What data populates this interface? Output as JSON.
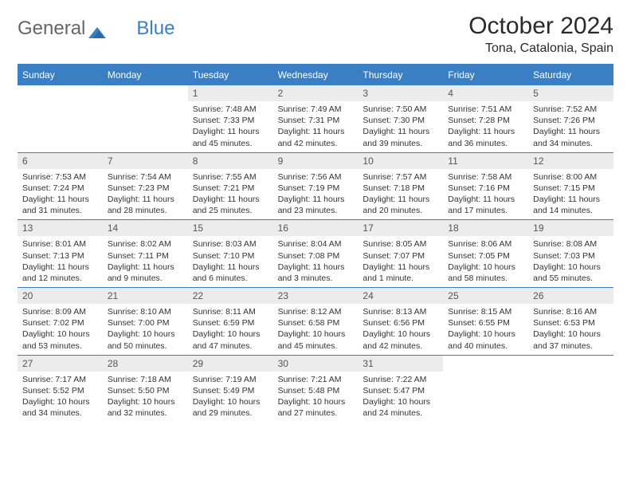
{
  "brand": {
    "part1": "General",
    "part2": "Blue"
  },
  "title": "October 2024",
  "location": "Tona, Catalonia, Spain",
  "colors": {
    "accent": "#3a7fc4",
    "dayHeaderBg": "#ececec",
    "text": "#333333",
    "logoGray": "#666666",
    "white": "#ffffff"
  },
  "calendar": {
    "daysOfWeek": [
      "Sunday",
      "Monday",
      "Tuesday",
      "Wednesday",
      "Thursday",
      "Friday",
      "Saturday"
    ],
    "leadingBlanks": 2,
    "days": [
      {
        "n": "1",
        "sunrise": "Sunrise: 7:48 AM",
        "sunset": "Sunset: 7:33 PM",
        "daylight": "Daylight: 11 hours and 45 minutes."
      },
      {
        "n": "2",
        "sunrise": "Sunrise: 7:49 AM",
        "sunset": "Sunset: 7:31 PM",
        "daylight": "Daylight: 11 hours and 42 minutes."
      },
      {
        "n": "3",
        "sunrise": "Sunrise: 7:50 AM",
        "sunset": "Sunset: 7:30 PM",
        "daylight": "Daylight: 11 hours and 39 minutes."
      },
      {
        "n": "4",
        "sunrise": "Sunrise: 7:51 AM",
        "sunset": "Sunset: 7:28 PM",
        "daylight": "Daylight: 11 hours and 36 minutes."
      },
      {
        "n": "5",
        "sunrise": "Sunrise: 7:52 AM",
        "sunset": "Sunset: 7:26 PM",
        "daylight": "Daylight: 11 hours and 34 minutes."
      },
      {
        "n": "6",
        "sunrise": "Sunrise: 7:53 AM",
        "sunset": "Sunset: 7:24 PM",
        "daylight": "Daylight: 11 hours and 31 minutes."
      },
      {
        "n": "7",
        "sunrise": "Sunrise: 7:54 AM",
        "sunset": "Sunset: 7:23 PM",
        "daylight": "Daylight: 11 hours and 28 minutes."
      },
      {
        "n": "8",
        "sunrise": "Sunrise: 7:55 AM",
        "sunset": "Sunset: 7:21 PM",
        "daylight": "Daylight: 11 hours and 25 minutes."
      },
      {
        "n": "9",
        "sunrise": "Sunrise: 7:56 AM",
        "sunset": "Sunset: 7:19 PM",
        "daylight": "Daylight: 11 hours and 23 minutes."
      },
      {
        "n": "10",
        "sunrise": "Sunrise: 7:57 AM",
        "sunset": "Sunset: 7:18 PM",
        "daylight": "Daylight: 11 hours and 20 minutes."
      },
      {
        "n": "11",
        "sunrise": "Sunrise: 7:58 AM",
        "sunset": "Sunset: 7:16 PM",
        "daylight": "Daylight: 11 hours and 17 minutes."
      },
      {
        "n": "12",
        "sunrise": "Sunrise: 8:00 AM",
        "sunset": "Sunset: 7:15 PM",
        "daylight": "Daylight: 11 hours and 14 minutes."
      },
      {
        "n": "13",
        "sunrise": "Sunrise: 8:01 AM",
        "sunset": "Sunset: 7:13 PM",
        "daylight": "Daylight: 11 hours and 12 minutes."
      },
      {
        "n": "14",
        "sunrise": "Sunrise: 8:02 AM",
        "sunset": "Sunset: 7:11 PM",
        "daylight": "Daylight: 11 hours and 9 minutes."
      },
      {
        "n": "15",
        "sunrise": "Sunrise: 8:03 AM",
        "sunset": "Sunset: 7:10 PM",
        "daylight": "Daylight: 11 hours and 6 minutes."
      },
      {
        "n": "16",
        "sunrise": "Sunrise: 8:04 AM",
        "sunset": "Sunset: 7:08 PM",
        "daylight": "Daylight: 11 hours and 3 minutes."
      },
      {
        "n": "17",
        "sunrise": "Sunrise: 8:05 AM",
        "sunset": "Sunset: 7:07 PM",
        "daylight": "Daylight: 11 hours and 1 minute."
      },
      {
        "n": "18",
        "sunrise": "Sunrise: 8:06 AM",
        "sunset": "Sunset: 7:05 PM",
        "daylight": "Daylight: 10 hours and 58 minutes."
      },
      {
        "n": "19",
        "sunrise": "Sunrise: 8:08 AM",
        "sunset": "Sunset: 7:03 PM",
        "daylight": "Daylight: 10 hours and 55 minutes."
      },
      {
        "n": "20",
        "sunrise": "Sunrise: 8:09 AM",
        "sunset": "Sunset: 7:02 PM",
        "daylight": "Daylight: 10 hours and 53 minutes."
      },
      {
        "n": "21",
        "sunrise": "Sunrise: 8:10 AM",
        "sunset": "Sunset: 7:00 PM",
        "daylight": "Daylight: 10 hours and 50 minutes."
      },
      {
        "n": "22",
        "sunrise": "Sunrise: 8:11 AM",
        "sunset": "Sunset: 6:59 PM",
        "daylight": "Daylight: 10 hours and 47 minutes."
      },
      {
        "n": "23",
        "sunrise": "Sunrise: 8:12 AM",
        "sunset": "Sunset: 6:58 PM",
        "daylight": "Daylight: 10 hours and 45 minutes."
      },
      {
        "n": "24",
        "sunrise": "Sunrise: 8:13 AM",
        "sunset": "Sunset: 6:56 PM",
        "daylight": "Daylight: 10 hours and 42 minutes."
      },
      {
        "n": "25",
        "sunrise": "Sunrise: 8:15 AM",
        "sunset": "Sunset: 6:55 PM",
        "daylight": "Daylight: 10 hours and 40 minutes."
      },
      {
        "n": "26",
        "sunrise": "Sunrise: 8:16 AM",
        "sunset": "Sunset: 6:53 PM",
        "daylight": "Daylight: 10 hours and 37 minutes."
      },
      {
        "n": "27",
        "sunrise": "Sunrise: 7:17 AM",
        "sunset": "Sunset: 5:52 PM",
        "daylight": "Daylight: 10 hours and 34 minutes."
      },
      {
        "n": "28",
        "sunrise": "Sunrise: 7:18 AM",
        "sunset": "Sunset: 5:50 PM",
        "daylight": "Daylight: 10 hours and 32 minutes."
      },
      {
        "n": "29",
        "sunrise": "Sunrise: 7:19 AM",
        "sunset": "Sunset: 5:49 PM",
        "daylight": "Daylight: 10 hours and 29 minutes."
      },
      {
        "n": "30",
        "sunrise": "Sunrise: 7:21 AM",
        "sunset": "Sunset: 5:48 PM",
        "daylight": "Daylight: 10 hours and 27 minutes."
      },
      {
        "n": "31",
        "sunrise": "Sunrise: 7:22 AM",
        "sunset": "Sunset: 5:47 PM",
        "daylight": "Daylight: 10 hours and 24 minutes."
      }
    ],
    "trailingBlanks": 2
  }
}
